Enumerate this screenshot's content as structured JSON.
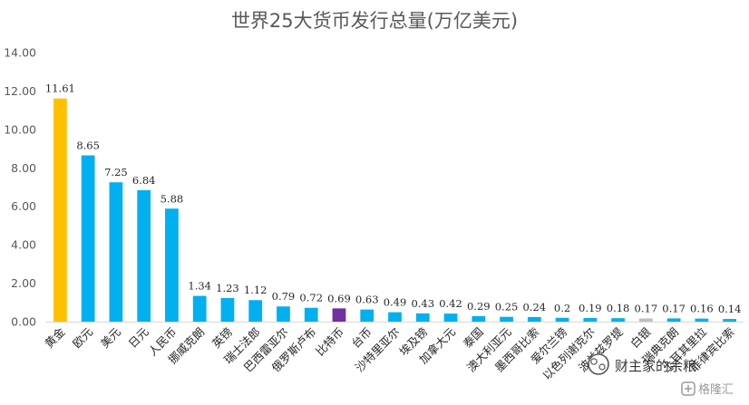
{
  "chart_data": {
    "type": "bar",
    "title": "世界25大货币发行总量(万亿美元)",
    "categories": [
      "黄金",
      "欧元",
      "美元",
      "日元",
      "人民币",
      "挪威克朗",
      "英镑",
      "瑞士法郎",
      "巴西雷亚尔",
      "俄罗斯卢布",
      "比特币",
      "台币",
      "沙特里亚尔",
      "埃及镑",
      "加拿大元",
      "泰国",
      "澳大利亚元",
      "墨西哥比索",
      "爱尔兰镑",
      "以色列谢克尔",
      "波兰兹罗提",
      "白银",
      "瑞典克朗",
      "土耳其里拉",
      "菲律宾比索"
    ],
    "values": [
      11.61,
      8.65,
      7.25,
      6.84,
      5.88,
      1.34,
      1.23,
      1.12,
      0.79,
      0.72,
      0.69,
      0.63,
      0.49,
      0.43,
      0.42,
      0.29,
      0.25,
      0.24,
      0.2,
      0.19,
      0.18,
      0.17,
      0.17,
      0.16,
      0.14
    ],
    "value_labels": [
      "11.61",
      "8.65",
      "7.25",
      "6.84",
      "5.88",
      "1.34",
      "1.23",
      "1.12",
      "0.79",
      "0.72",
      "0.69",
      "0.63",
      "0.49",
      "0.43",
      "0.42",
      "0.29",
      "0.25",
      "0.24",
      "0.2",
      "0.19",
      "0.18",
      "0.17",
      "0.17",
      "0.16",
      "0.14"
    ],
    "bar_colors": [
      "#FFC000",
      "#00B0F0",
      "#00B0F0",
      "#00B0F0",
      "#00B0F0",
      "#00B0F0",
      "#00B0F0",
      "#00B0F0",
      "#00B0F0",
      "#00B0F0",
      "#7030A0",
      "#00B0F0",
      "#00B0F0",
      "#00B0F0",
      "#00B0F0",
      "#00B0F0",
      "#00B0F0",
      "#00B0F0",
      "#00B0F0",
      "#00B0F0",
      "#00B0F0",
      "#BFBFBF",
      "#00B0F0",
      "#00B0F0",
      "#00B0F0"
    ],
    "ylim": [
      0,
      14
    ],
    "yticks": [
      "0.00",
      "2.00",
      "4.00",
      "6.00",
      "8.00",
      "10.00",
      "12.00",
      "14.00"
    ],
    "xlabel": "",
    "ylabel": "",
    "grid": false,
    "legend": "none"
  },
  "watermarks": {
    "wechat_text": "财主家的余粮",
    "corner_text": "格隆汇",
    "wechat_icon": "wechat-icon",
    "corner_icon": "gelonghui-logo-icon"
  }
}
